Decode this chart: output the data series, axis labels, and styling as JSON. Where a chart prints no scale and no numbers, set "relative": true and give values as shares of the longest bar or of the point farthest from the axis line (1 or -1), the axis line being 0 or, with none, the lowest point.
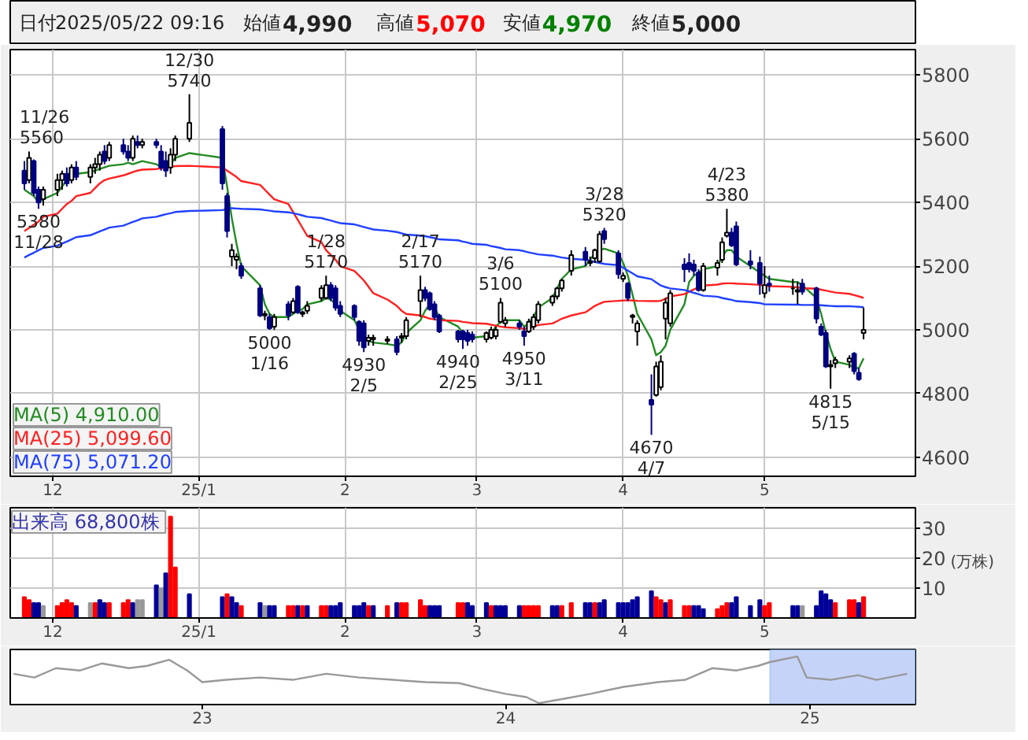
{
  "chart_data": [
    {
      "type": "other",
      "annotations": [
        "日付",
        "2025/05/22 09:16",
        "始値",
        "4,990",
        "高値",
        "5,070",
        "安値",
        "4,970",
        "終値",
        "5,000"
      ]
    },
    {
      "type": "candlestick",
      "xlim": [
        "2024-11-22",
        "2025-06-02"
      ],
      "ylim": [
        4540,
        5880
      ],
      "yticks": [
        4600,
        4800,
        5000,
        5200,
        5400,
        5600,
        5800
      ],
      "xticks": [
        {
          "value": "2024-12-01",
          "label": "12"
        },
        {
          "value": "2025-01-01",
          "label": "25/1"
        },
        {
          "value": "2025-02-01",
          "label": "2"
        },
        {
          "value": "2025-03-01",
          "label": "3"
        },
        {
          "value": "2025-04-01",
          "label": "4"
        },
        {
          "value": "2025-05-01",
          "label": "5"
        }
      ],
      "grid": true,
      "legend": "bottom left",
      "x": [
        "2024-11-25",
        "2024-11-26",
        "2024-11-27",
        "2024-11-28",
        "2024-11-29",
        "2024-12-02",
        "2024-12-03",
        "2024-12-04",
        "2024-12-05",
        "2024-12-06",
        "2024-12-09",
        "2024-12-10",
        "2024-12-11",
        "2024-12-12",
        "2024-12-13",
        "2024-12-16",
        "2024-12-17",
        "2024-12-18",
        "2024-12-19",
        "2024-12-20",
        "2024-12-23",
        "2024-12-24",
        "2024-12-25",
        "2024-12-26",
        "2024-12-27",
        "2024-12-30",
        "2025-01-06",
        "2025-01-07",
        "2025-01-08",
        "2025-01-09",
        "2025-01-10",
        "2025-01-14",
        "2025-01-15",
        "2025-01-16",
        "2025-01-17",
        "2025-01-20",
        "2025-01-21",
        "2025-01-22",
        "2025-01-23",
        "2025-01-24",
        "2025-01-27",
        "2025-01-28",
        "2025-01-29",
        "2025-01-30",
        "2025-01-31",
        "2025-02-03",
        "2025-02-04",
        "2025-02-05",
        "2025-02-06",
        "2025-02-07",
        "2025-02-10",
        "2025-02-12",
        "2025-02-13",
        "2025-02-14",
        "2025-02-17",
        "2025-02-18",
        "2025-02-19",
        "2025-02-20",
        "2025-02-21",
        "2025-02-25",
        "2025-02-26",
        "2025-02-27",
        "2025-02-28",
        "2025-03-03",
        "2025-03-04",
        "2025-03-05",
        "2025-03-06",
        "2025-03-07",
        "2025-03-10",
        "2025-03-11",
        "2025-03-12",
        "2025-03-13",
        "2025-03-14",
        "2025-03-17",
        "2025-03-18",
        "2025-03-19",
        "2025-03-21",
        "2025-03-24",
        "2025-03-25",
        "2025-03-26",
        "2025-03-27",
        "2025-03-28",
        "2025-03-31",
        "2025-04-01",
        "2025-04-02",
        "2025-04-03",
        "2025-04-04",
        "2025-04-07",
        "2025-04-08",
        "2025-04-09",
        "2025-04-10",
        "2025-04-11",
        "2025-04-14",
        "2025-04-15",
        "2025-04-16",
        "2025-04-17",
        "2025-04-18",
        "2025-04-21",
        "2025-04-22",
        "2025-04-23",
        "2025-04-24",
        "2025-04-25",
        "2025-04-28",
        "2025-04-30",
        "2025-05-01",
        "2025-05-02",
        "2025-05-07",
        "2025-05-08",
        "2025-05-09",
        "2025-05-12",
        "2025-05-13",
        "2025-05-14",
        "2025-05-15",
        "2025-05-16",
        "2025-05-19",
        "2025-05-20",
        "2025-05-21",
        "2025-05-22"
      ],
      "ohlc": [
        [
          5500,
          5530,
          5440,
          5460
        ],
        [
          5470,
          5560,
          5460,
          5540
        ],
        [
          5530,
          5535,
          5420,
          5430
        ],
        [
          5440,
          5450,
          5380,
          5400
        ],
        [
          5410,
          5450,
          5390,
          5440
        ],
        [
          5440,
          5490,
          5420,
          5470
        ],
        [
          5470,
          5500,
          5440,
          5490
        ],
        [
          5490,
          5510,
          5450,
          5460
        ],
        [
          5470,
          5520,
          5460,
          5510
        ],
        [
          5510,
          5530,
          5470,
          5480
        ],
        [
          5480,
          5520,
          5460,
          5510
        ],
        [
          5510,
          5540,
          5490,
          5520
        ],
        [
          5520,
          5560,
          5500,
          5550
        ],
        [
          5560,
          5580,
          5520,
          5530
        ],
        [
          5540,
          5590,
          5530,
          5580
        ],
        [
          5580,
          5600,
          5550,
          5560
        ],
        [
          5560,
          5580,
          5530,
          5540
        ],
        [
          5540,
          5610,
          5530,
          5600
        ],
        [
          5590,
          5610,
          5570,
          5580
        ],
        [
          5580,
          5600,
          5570,
          5590
        ],
        [
          5590,
          5600,
          5570,
          5580
        ],
        [
          5560,
          5580,
          5500,
          5510
        ],
        [
          5530,
          5560,
          5480,
          5500
        ],
        [
          5510,
          5570,
          5490,
          5550
        ],
        [
          5550,
          5610,
          5530,
          5600
        ],
        [
          5600,
          5740,
          5590,
          5650
        ],
        [
          5630,
          5640,
          5440,
          5460
        ],
        [
          5420,
          5430,
          5290,
          5310
        ],
        [
          5230,
          5270,
          5200,
          5250
        ],
        [
          5220,
          5240,
          5190,
          5230
        ],
        [
          5200,
          5210,
          5160,
          5170
        ],
        [
          5130,
          5140,
          5040,
          5045
        ],
        [
          5045,
          5060,
          5030,
          5050
        ],
        [
          5040,
          5050,
          5000,
          5005
        ],
        [
          5010,
          5050,
          5000,
          5040
        ],
        [
          5080,
          5090,
          5030,
          5045
        ],
        [
          5055,
          5100,
          5050,
          5090
        ],
        [
          5135,
          5140,
          5050,
          5055
        ],
        [
          5050,
          5060,
          5040,
          5055
        ],
        [
          5060,
          5090,
          5050,
          5075
        ],
        [
          5100,
          5140,
          5090,
          5130
        ],
        [
          5100,
          5170,
          5095,
          5140
        ],
        [
          5140,
          5150,
          5090,
          5100
        ],
        [
          5130,
          5140,
          5060,
          5070
        ],
        [
          5075,
          5090,
          5040,
          5050
        ],
        [
          5075,
          5080,
          5030,
          5040
        ],
        [
          5025,
          5030,
          4950,
          4965
        ],
        [
          5020,
          5030,
          4930,
          4945
        ],
        [
          4965,
          4985,
          4950,
          4975
        ],
        [
          4970,
          4985,
          4950,
          4975
        ],
        [
          4965,
          4980,
          4955,
          4970
        ],
        [
          4970,
          4980,
          4920,
          4930
        ],
        [
          4975,
          4990,
          4960,
          4980
        ],
        [
          4980,
          5040,
          4970,
          5030
        ],
        [
          5090,
          5170,
          5040,
          5125
        ],
        [
          5125,
          5135,
          5090,
          5100
        ],
        [
          5115,
          5120,
          5060,
          5065
        ],
        [
          5080,
          5090,
          5030,
          5040
        ],
        [
          5045,
          5050,
          4990,
          4995
        ],
        [
          4995,
          5000,
          4960,
          4970
        ],
        [
          4995,
          5000,
          4940,
          4970
        ],
        [
          4990,
          5000,
          4950,
          4965
        ],
        [
          4985,
          4995,
          4960,
          4970
        ],
        [
          4970,
          4995,
          4960,
          4990
        ],
        [
          4975,
          5010,
          4970,
          5000
        ],
        [
          4980,
          5010,
          4970,
          5000
        ],
        [
          5025,
          5100,
          5020,
          5085
        ],
        [
          5020,
          5040,
          5010,
          5030
        ],
        [
          5020,
          5030,
          5000,
          5010
        ],
        [
          4995,
          5010,
          4950,
          4980
        ],
        [
          4995,
          5035,
          4990,
          5025
        ],
        [
          5010,
          5050,
          5000,
          5040
        ],
        [
          5030,
          5090,
          5020,
          5080
        ],
        [
          5085,
          5110,
          5075,
          5105
        ],
        [
          5105,
          5135,
          5095,
          5130
        ],
        [
          5130,
          5160,
          5120,
          5155
        ],
        [
          5185,
          5250,
          5170,
          5235
        ],
        [
          5245,
          5260,
          5200,
          5220
        ],
        [
          5210,
          5230,
          5200,
          5215
        ],
        [
          5225,
          5255,
          5210,
          5250
        ],
        [
          5215,
          5310,
          5210,
          5300
        ],
        [
          5310,
          5320,
          5270,
          5285
        ],
        [
          5240,
          5250,
          5160,
          5175
        ],
        [
          5160,
          5180,
          5150,
          5170
        ],
        [
          5145,
          5150,
          5090,
          5100
        ],
        [
          5040,
          5050,
          5020,
          5045
        ],
        [
          4995,
          5030,
          4950,
          5020
        ],
        [
          4780,
          4860,
          4670,
          4765
        ],
        [
          4795,
          4900,
          4790,
          4885
        ],
        [
          4820,
          4920,
          4810,
          4900
        ],
        [
          5035,
          5100,
          4970,
          5085
        ],
        [
          5020,
          5125,
          5010,
          5115
        ],
        [
          5205,
          5225,
          5150,
          5190
        ],
        [
          5210,
          5240,
          5180,
          5190
        ],
        [
          5205,
          5220,
          5170,
          5185
        ],
        [
          5180,
          5190,
          5120,
          5125
        ],
        [
          5125,
          5210,
          5120,
          5200
        ],
        [
          5195,
          5220,
          5170,
          5210
        ],
        [
          5220,
          5290,
          5210,
          5275
        ],
        [
          5295,
          5380,
          5290,
          5305
        ],
        [
          5305,
          5320,
          5260,
          5265
        ],
        [
          5325,
          5340,
          5200,
          5205
        ],
        [
          5215,
          5250,
          5190,
          5205
        ],
        [
          5210,
          5230,
          5110,
          5145
        ],
        [
          5115,
          5200,
          5100,
          5140
        ],
        [
          5145,
          5170,
          5120,
          5140
        ],
        [
          5130,
          5160,
          5110,
          5130
        ],
        [
          5120,
          5150,
          5080,
          5125
        ],
        [
          5145,
          5160,
          5110,
          5120
        ],
        [
          5130,
          5135,
          5020,
          5035
        ],
        [
          5010,
          5020,
          4980,
          4985
        ],
        [
          4990,
          5000,
          4880,
          4885
        ],
        [
          4885,
          4905,
          4815,
          4890
        ],
        [
          4895,
          4915,
          4880,
          4905
        ],
        [
          4900,
          4920,
          4880,
          4910
        ],
        [
          4925,
          4930,
          4860,
          4870
        ],
        [
          4865,
          4880,
          4840,
          4845
        ],
        [
          4990,
          5070,
          4970,
          5000
        ]
      ],
      "series": [
        {
          "type": "line",
          "name": "MA(5) 4,910.00",
          "color": "#228b22",
          "values": [
            5440,
            5430,
            5420,
            5400,
            5410,
            5430,
            5450,
            5470,
            5480,
            5490,
            5495,
            5500,
            5505,
            5510,
            5515,
            5520,
            5525,
            5520,
            5525,
            5530,
            5520,
            5510,
            5510,
            5520,
            5540,
            5555,
            5540,
            5450,
            5350,
            5270,
            5200,
            5140,
            5080,
            5050,
            5040,
            5040,
            5050,
            5060,
            5065,
            5080,
            5090,
            5100,
            5095,
            5080,
            5060,
            5030,
            5000,
            4980,
            4965,
            4960,
            4955,
            4950,
            4960,
            4990,
            5030,
            5060,
            5080,
            5070,
            5040,
            5010,
            4990,
            4970,
            4975,
            4980,
            4990,
            5010,
            5025,
            5030,
            5030,
            5010,
            5020,
            5040,
            5070,
            5100,
            5130,
            5160,
            5190,
            5200,
            5220,
            5240,
            5250,
            5255,
            5240,
            5210,
            5170,
            5110,
            5050,
            4970,
            4920,
            4930,
            4950,
            5000,
            5080,
            5150,
            5170,
            5180,
            5190,
            5200,
            5230,
            5250,
            5250,
            5230,
            5200,
            5180,
            5170,
            5160,
            5150,
            5150,
            5140,
            5100,
            5050,
            4990,
            4940,
            4900,
            4890,
            4880,
            4880,
            4910
          ]
        },
        {
          "type": "line",
          "name": "MA(25) 5,099.60",
          "color": "#ff2020",
          "values": [
            5310,
            5320,
            5330,
            5340,
            5355,
            5365,
            5380,
            5395,
            5405,
            5420,
            5430,
            5445,
            5460,
            5470,
            5475,
            5485,
            5490,
            5495,
            5500,
            5503,
            5505,
            5507,
            5510,
            5512,
            5514,
            5515,
            5510,
            5500,
            5490,
            5480,
            5467,
            5455,
            5440,
            5425,
            5410,
            5395,
            5370,
            5345,
            5320,
            5295,
            5275,
            5250,
            5235,
            5220,
            5200,
            5185,
            5170,
            5155,
            5135,
            5115,
            5095,
            5075,
            5060,
            5050,
            5045,
            5040,
            5035,
            5033,
            5030,
            5028,
            5025,
            5023,
            5021,
            5019,
            5016,
            5013,
            5010,
            5008,
            5005,
            5003,
            5005,
            5010,
            5015,
            5020,
            5027,
            5035,
            5045,
            5055,
            5065,
            5075,
            5082,
            5088,
            5091,
            5092,
            5093,
            5092,
            5091,
            5090,
            5090,
            5091,
            5098,
            5105,
            5112,
            5120,
            5127,
            5133,
            5139,
            5142,
            5145,
            5146,
            5146,
            5145,
            5143,
            5141,
            5139,
            5137,
            5135,
            5133,
            5131,
            5129,
            5126,
            5123,
            5120,
            5117,
            5113,
            5109,
            5105,
            5100
          ]
        },
        {
          "type": "line",
          "name": "MA(75) 5,071.20",
          "color": "#2040ff",
          "values": [
            5227,
            5235,
            5242,
            5250,
            5257,
            5264,
            5271,
            5277,
            5284,
            5291,
            5297,
            5303,
            5309,
            5315,
            5321,
            5327,
            5333,
            5339,
            5344,
            5350,
            5355,
            5359,
            5363,
            5366,
            5370,
            5373,
            5376,
            5379,
            5382,
            5381,
            5380,
            5378,
            5376,
            5374,
            5372,
            5369,
            5366,
            5363,
            5359,
            5355,
            5351,
            5347,
            5343,
            5339,
            5335,
            5331,
            5327,
            5323,
            5319,
            5315,
            5311,
            5307,
            5303,
            5299,
            5296,
            5294,
            5291,
            5288,
            5284,
            5281,
            5277,
            5274,
            5270,
            5267,
            5263,
            5260,
            5257,
            5253,
            5250,
            5247,
            5243,
            5240,
            5237,
            5233,
            5230,
            5227,
            5223,
            5220,
            5217,
            5213,
            5210,
            5207,
            5203,
            5195,
            5186,
            5177,
            5168,
            5159,
            5149,
            5139,
            5134,
            5130,
            5125,
            5121,
            5116,
            5112,
            5107,
            5104,
            5100,
            5097,
            5094,
            5090,
            5087,
            5084,
            5080,
            5080,
            5079,
            5079,
            5078,
            5078,
            5077,
            5076,
            5075,
            5074,
            5074,
            5073,
            5072,
            5071
          ]
        }
      ],
      "annotations": [
        {
          "text": "11/26\n5560",
          "x": "2024-11-26",
          "y": 5560
        },
        {
          "text": "5380\n11/28",
          "x": "2024-11-28",
          "y": 5380
        },
        {
          "text": "12/30\n5740",
          "x": "2024-12-30",
          "y": 5740
        },
        {
          "text": "5000\n1/16",
          "x": "2025-01-16",
          "y": 5000
        },
        {
          "text": "1/28\n5170",
          "x": "2025-01-28",
          "y": 5170
        },
        {
          "text": "4930\n2/5",
          "x": "2025-02-05",
          "y": 4930
        },
        {
          "text": "2/17\n5170",
          "x": "2025-02-17",
          "y": 5170
        },
        {
          "text": "4940\n2/25",
          "x": "2025-02-25",
          "y": 4940
        },
        {
          "text": "3/6\n5100",
          "x": "2025-03-06",
          "y": 5100
        },
        {
          "text": "4950\n3/11",
          "x": "2025-03-11",
          "y": 4950
        },
        {
          "text": "3/28\n5320",
          "x": "2025-03-28",
          "y": 5320
        },
        {
          "text": "4670\n4/7",
          "x": "2025-04-07",
          "y": 4670
        },
        {
          "text": "4/23\n5380",
          "x": "2025-04-23",
          "y": 5380
        },
        {
          "text": "4815\n5/15",
          "x": "2025-05-15",
          "y": 4815
        }
      ]
    },
    {
      "type": "bar",
      "title": "出来高  68,800株",
      "ylabel": "(万株)",
      "xlim": [
        "2024-11-22",
        "2025-06-02"
      ],
      "ylim": [
        0,
        37
      ],
      "yticks": [
        10,
        20,
        30
      ],
      "xticks": [
        {
          "value": "2024-12-01",
          "label": "12"
        },
        {
          "value": "2025-01-01",
          "label": "25/1"
        },
        {
          "value": "2025-02-01",
          "label": "2"
        },
        {
          "value": "2025-03-01",
          "label": "3"
        },
        {
          "value": "2025-04-01",
          "label": "4"
        },
        {
          "value": "2025-05-01",
          "label": "5"
        }
      ],
      "grid": true,
      "x": [
        "2024-11-25",
        "2024-11-26",
        "2024-11-27",
        "2024-11-28",
        "2024-11-29",
        "2024-12-02",
        "2024-12-03",
        "2024-12-04",
        "2024-12-05",
        "2024-12-06",
        "2024-12-09",
        "2024-12-10",
        "2024-12-11",
        "2024-12-12",
        "2024-12-13",
        "2024-12-16",
        "2024-12-17",
        "2024-12-18",
        "2024-12-19",
        "2024-12-20",
        "2024-12-23",
        "2024-12-24",
        "2024-12-25",
        "2024-12-26",
        "2024-12-27",
        "2024-12-30",
        "2025-01-06",
        "2025-01-07",
        "2025-01-08",
        "2025-01-09",
        "2025-01-10",
        "2025-01-14",
        "2025-01-15",
        "2025-01-16",
        "2025-01-17",
        "2025-01-20",
        "2025-01-21",
        "2025-01-22",
        "2025-01-23",
        "2025-01-24",
        "2025-01-27",
        "2025-01-28",
        "2025-01-29",
        "2025-01-30",
        "2025-01-31",
        "2025-02-03",
        "2025-02-04",
        "2025-02-05",
        "2025-02-06",
        "2025-02-07",
        "2025-02-10",
        "2025-02-12",
        "2025-02-13",
        "2025-02-14",
        "2025-02-17",
        "2025-02-18",
        "2025-02-19",
        "2025-02-20",
        "2025-02-21",
        "2025-02-25",
        "2025-02-26",
        "2025-02-27",
        "2025-02-28",
        "2025-03-03",
        "2025-03-04",
        "2025-03-05",
        "2025-03-06",
        "2025-03-07",
        "2025-03-10",
        "2025-03-11",
        "2025-03-12",
        "2025-03-13",
        "2025-03-14",
        "2025-03-17",
        "2025-03-18",
        "2025-03-19",
        "2025-03-21",
        "2025-03-24",
        "2025-03-25",
        "2025-03-26",
        "2025-03-27",
        "2025-03-28",
        "2025-03-31",
        "2025-04-01",
        "2025-04-02",
        "2025-04-03",
        "2025-04-04",
        "2025-04-07",
        "2025-04-08",
        "2025-04-09",
        "2025-04-10",
        "2025-04-11",
        "2025-04-14",
        "2025-04-15",
        "2025-04-16",
        "2025-04-17",
        "2025-04-18",
        "2025-04-21",
        "2025-04-22",
        "2025-04-23",
        "2025-04-24",
        "2025-04-25",
        "2025-04-28",
        "2025-04-30",
        "2025-05-01",
        "2025-05-02",
        "2025-05-07",
        "2025-05-08",
        "2025-05-09",
        "2025-05-12",
        "2025-05-13",
        "2025-05-14",
        "2025-05-15",
        "2025-05-16",
        "2025-05-19",
        "2025-05-20",
        "2025-05-21",
        "2025-05-22"
      ],
      "values": [
        7,
        6,
        5,
        5,
        4,
        4,
        5,
        6,
        5,
        4,
        5,
        5,
        6,
        5,
        5,
        5,
        6,
        5,
        6,
        6,
        11,
        10,
        15,
        34,
        17,
        8,
        7,
        8,
        7,
        5,
        4,
        5,
        4,
        4,
        4,
        4,
        4,
        4,
        4,
        4,
        4,
        4,
        4,
        4,
        5,
        4,
        4,
        5,
        4,
        4,
        4,
        5,
        5,
        5,
        6,
        4,
        4,
        4,
        4,
        5,
        5,
        5,
        4,
        5,
        4,
        4,
        4,
        4,
        4,
        4,
        4,
        4,
        4,
        4,
        4,
        4,
        5,
        5,
        5,
        5,
        5,
        6,
        5,
        5,
        5,
        6,
        7,
        9,
        7,
        6,
        5,
        6,
        4,
        4,
        4,
        4,
        3,
        3,
        4,
        5,
        5,
        7,
        4,
        6,
        4,
        5,
        4,
        4,
        4,
        4,
        9,
        8,
        6,
        5,
        6,
        6,
        5,
        7
      ],
      "colors": [
        "#ff0000",
        "#ff0000",
        "#000099",
        "#000099",
        "#999999",
        "#ff0000",
        "#ff0000",
        "#ff0000",
        "#ff0000",
        "#000099",
        "#999999",
        "#ff0000",
        "#000099",
        "#000099",
        "#ff0000",
        "#ff0000",
        "#ff0000",
        "#000099",
        "#999999",
        "#999999",
        "#000099",
        "#999999",
        "#000099",
        "#ff0000",
        "#ff0000",
        "#000099",
        "#000099",
        "#ff0000",
        "#000099",
        "#000099",
        "#ff0000",
        "#000099",
        "#999999",
        "#000099",
        "#000099",
        "#ff0000",
        "#ff0000",
        "#000099",
        "#ff0000",
        "#000099",
        "#ff0000",
        "#ff0000",
        "#000099",
        "#000099",
        "#000099",
        "#000099",
        "#000099",
        "#000099",
        "#ff0000",
        "#000099",
        "#ff0000",
        "#000099",
        "#ff0000",
        "#ff0000",
        "#ff0000",
        "#ff0000",
        "#000099",
        "#000099",
        "#000099",
        "#ff0000",
        "#ff0000",
        "#000099",
        "#000099",
        "#000099",
        "#ff0000",
        "#000099",
        "#000099",
        "#000099",
        "#000099",
        "#ff0000",
        "#ff0000",
        "#ff0000",
        "#ff0000",
        "#000099",
        "#000099",
        "#ff0000",
        "#ff0000",
        "#000099",
        "#000099",
        "#ff0000",
        "#000099",
        "#000099",
        "#000099",
        "#000099",
        "#000099",
        "#000099",
        "#000099",
        "#000099",
        "#ff0000",
        "#ff0000",
        "#000099",
        "#ff0000",
        "#ff0000",
        "#ff0000",
        "#000099",
        "#000099",
        "#000099",
        "#ff0000",
        "#ff0000",
        "#ff0000",
        "#000099",
        "#000099",
        "#000099",
        "#000099",
        "#ff0000",
        "#ff0000",
        "#000099",
        "#000099",
        "#999999",
        "#000099",
        "#000099",
        "#000099",
        "#000099",
        "#ff0000",
        "#ff0000",
        "#ff0000",
        "#000099",
        "#ff0000"
      ]
    },
    {
      "type": "line",
      "relative": true,
      "tick_labels": "x",
      "color": "#999999",
      "xlim": [
        "2022-05-15",
        "2025-05-08"
      ],
      "xticks": [
        {
          "value": "2023-01-01",
          "label": "23"
        },
        {
          "value": "2024-01-01",
          "label": "24"
        },
        {
          "value": "2025-01-01",
          "label": "25"
        }
      ],
      "x": [
        "2022-05-19",
        "2022-06-13",
        "2022-07-09",
        "2022-08-07",
        "2022-09-02",
        "2022-10-05",
        "2022-10-27",
        "2022-11-22",
        "2022-12-14",
        "2023-01-01",
        "2023-01-30",
        "2023-03-11",
        "2023-04-20",
        "2023-05-30",
        "2023-07-09",
        "2023-08-18",
        "2023-09-27",
        "2023-11-06",
        "2023-12-05",
        "2024-01-01",
        "2024-01-26",
        "2024-02-10",
        "2024-03-13",
        "2024-04-12",
        "2024-05-22",
        "2024-07-02",
        "2024-08-04",
        "2024-09-06",
        "2024-10-05",
        "2024-10-31",
        "2024-11-14",
        "2024-12-17",
        "2024-12-28",
        "2025-01-26",
        "2025-02-28",
        "2025-03-22",
        "2025-04-28"
      ],
      "values": [
        0.63,
        0.55,
        0.75,
        0.7,
        0.85,
        0.75,
        0.8,
        0.93,
        0.7,
        0.45,
        0.5,
        0.55,
        0.5,
        0.63,
        0.55,
        0.5,
        0.45,
        0.43,
        0.3,
        0.2,
        0.13,
        0,
        0.1,
        0.2,
        0.35,
        0.45,
        0.5,
        0.75,
        0.7,
        0.8,
        0.88,
        1,
        0.55,
        0.5,
        0.6,
        0.5,
        0.63
      ],
      "bands": [
        {
          "axis": "x",
          "from": "2024-11-14",
          "to": "2025-05-08",
          "color": "#b8c8f8"
        }
      ]
    }
  ]
}
